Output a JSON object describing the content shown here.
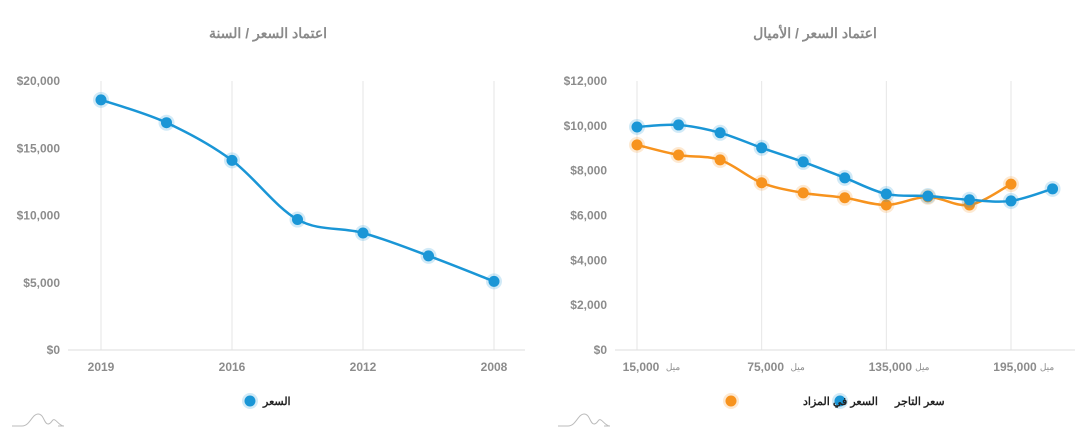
{
  "colors": {
    "blue": "#1a96d6",
    "orange": "#f7931e",
    "grid": "#e6e6e6"
  },
  "chart_data": [
    {
      "type": "line",
      "title": "اعتماد السعر / السنة",
      "xlabel": "",
      "ylabel": "",
      "x_tick_labels": [
        "2019",
        "2016",
        "2012",
        "2008"
      ],
      "y_tick_labels": [
        "$0",
        "$5,000",
        "$10,000",
        "$15,000",
        "$20,000"
      ],
      "ylim": [
        0,
        20000
      ],
      "point_count": 7,
      "series": [
        {
          "name": "السعر",
          "color": "#1a96d6",
          "values": [
            18600,
            16900,
            14100,
            9700,
            8700,
            7000,
            5100
          ]
        }
      ],
      "legend": "bottom-center"
    },
    {
      "type": "line",
      "title": "اعتماد السعر / الأميال",
      "xlabel": "",
      "ylabel": "",
      "x": [
        15000,
        35000,
        55000,
        75000,
        95000,
        115000,
        135000,
        155000,
        175000,
        195000,
        215000
      ],
      "x_tick_labels": [
        "15,000",
        "75,000",
        "135,000",
        "195,000"
      ],
      "x_tick_values": [
        15000,
        75000,
        135000,
        195000
      ],
      "x_tick_unit": "ميل",
      "xlim": [
        0,
        225000
      ],
      "y_tick_labels": [
        "$0",
        "$2,000",
        "$4,000",
        "$6,000",
        "$8,000",
        "$10,000",
        "$12,000"
      ],
      "ylim": [
        0,
        12000
      ],
      "series": [
        {
          "name": "سعر التاجر",
          "color": "#1a96d6",
          "values": [
            9950,
            10040,
            9690,
            9020,
            8390,
            7680,
            6960,
            6870,
            6700,
            6650,
            7190
          ]
        },
        {
          "name": "السعر في المزاد",
          "color": "#f7931e",
          "values": [
            9150,
            8700,
            8480,
            7460,
            7010,
            6790,
            6470,
            6830,
            6470,
            7400,
            null
          ]
        }
      ],
      "legend": "bottom-center"
    }
  ]
}
